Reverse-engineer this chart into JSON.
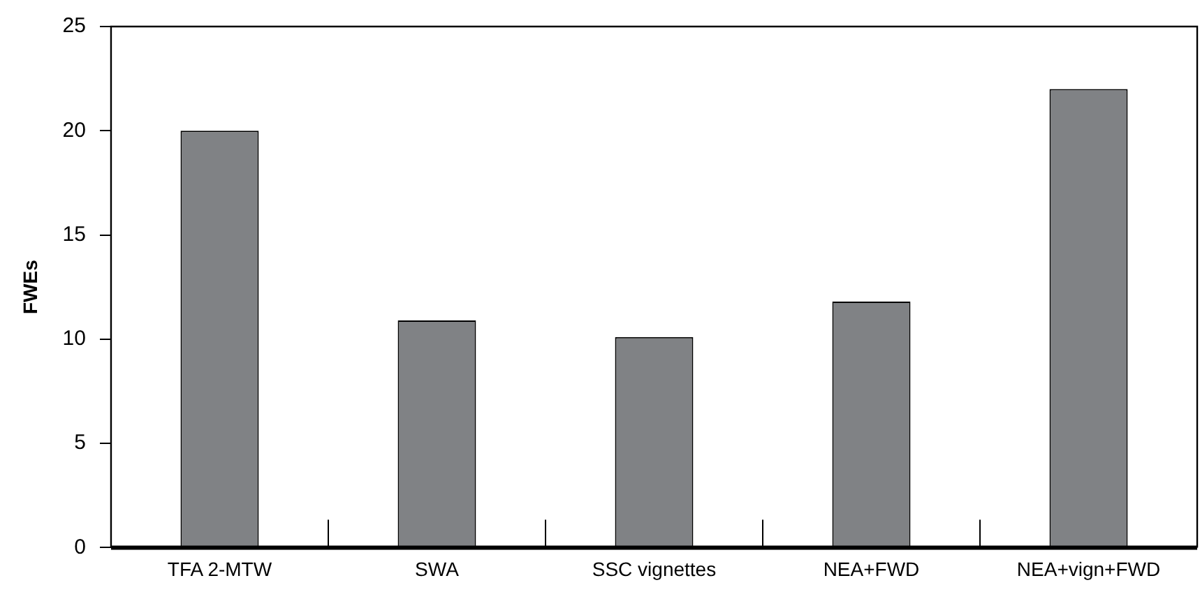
{
  "chart_data": {
    "type": "bar",
    "ylabel": "FWEs",
    "categories": [
      "TFA 2-MTW",
      "SWA",
      "SSC vignettes",
      "NEA+FWD",
      "NEA+vign+FWD"
    ],
    "values": [
      20,
      10.9,
      10.1,
      11.8,
      22
    ],
    "color": "#808285",
    "ylim": [
      0,
      25
    ],
    "yticks": [
      0,
      5,
      10,
      15,
      20,
      25
    ],
    "grid": false,
    "legend": false
  }
}
